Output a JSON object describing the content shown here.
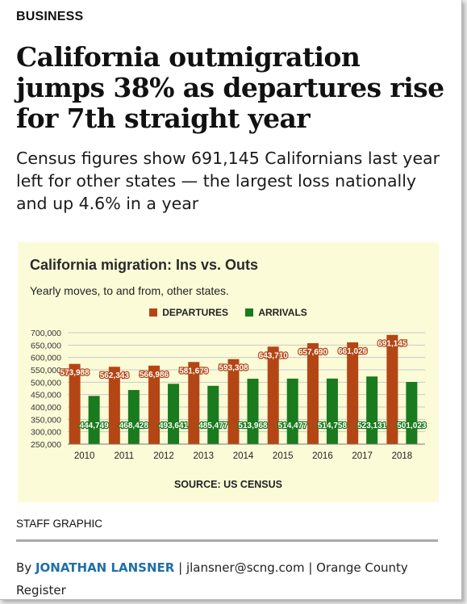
{
  "article": {
    "section": "BUSINESS",
    "headline": "California outmigration jumps 38% as departures rise for 7th straight year",
    "subhead": "Census figures show 691,145 Californians last year left for other states — the largest loss nationally and up 4.6% in a year",
    "credit": "STAFF GRAPHIC",
    "byline_prefix": "By",
    "author": "JONATHAN LANSNER",
    "byline_rest": "| jlansner@scng.com | Orange County Register"
  },
  "colors": {
    "departures": "#b34614",
    "arrivals": "#1a7a1e",
    "chart_background": "#fcfbd8",
    "author_link": "#1f6fa8"
  },
  "chart_data": {
    "type": "bar",
    "title": "California migration: Ins vs. Outs",
    "subtitle": "Yearly moves, to and from, other states.",
    "source": "SOURCE: US CENSUS",
    "categories": [
      "2010",
      "2011",
      "2012",
      "2013",
      "2014",
      "2015",
      "2016",
      "2017",
      "2018"
    ],
    "series": [
      {
        "name": "DEPARTURES",
        "values": [
          573988,
          562343,
          566986,
          581679,
          593308,
          643710,
          657690,
          661026,
          691145
        ],
        "labels": [
          "573,988",
          "562,343",
          "566,986",
          "581,679",
          "593,308",
          "643,710",
          "657,690",
          "661,026",
          "691,145"
        ]
      },
      {
        "name": "ARRIVALS",
        "values": [
          444749,
          468428,
          493641,
          485477,
          513968,
          514477,
          514758,
          523131,
          501023
        ],
        "labels": [
          "444,749",
          "468,428",
          "493,641",
          "485,477",
          "513,968",
          "514,477",
          "514,758",
          "523,131",
          "501,023"
        ]
      }
    ],
    "ylim": [
      250000,
      700000
    ],
    "yticks": [
      250000,
      300000,
      350000,
      400000,
      450000,
      500000,
      550000,
      600000,
      650000,
      700000
    ],
    "ytick_labels": [
      "250,000",
      "300,000",
      "350,000",
      "400,000",
      "450,000",
      "500,000",
      "550,000",
      "600,000",
      "650,000",
      "700,000"
    ],
    "grid": true,
    "legend_position": "top-center"
  }
}
